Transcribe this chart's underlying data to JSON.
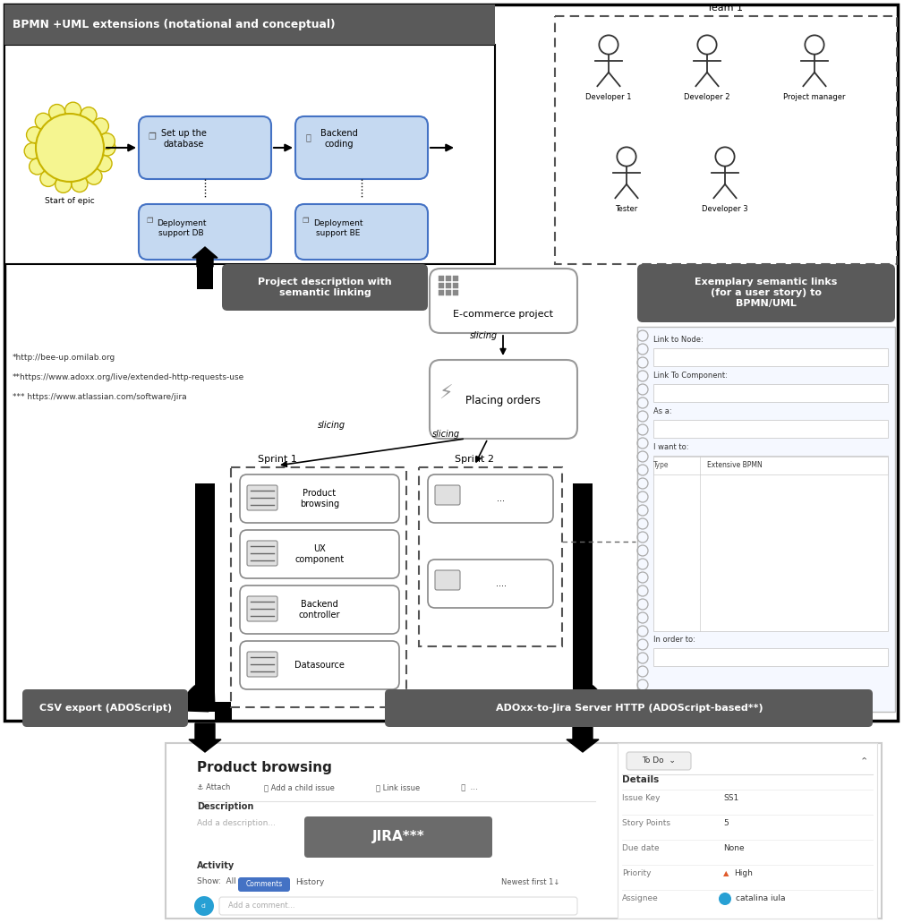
{
  "bg_color": "#ffffff",
  "bpmn_header": "BPMN +UML extensions (notational and conceptual)",
  "gray_dark": "#5a5a5a",
  "blue_fill": "#c5d9f1",
  "blue_border": "#4472c4",
  "project_desc_label": "Project description with\nsemantic linking",
  "semantic_links_header": "Exemplary semantic links\n(for a user story) to\nBPMN/UML",
  "ecommerce_label": "E-commerce project",
  "placing_orders_label": "Placing orders",
  "sprint1_label": "Sprint 1",
  "sprint2_label": "Sprint 2",
  "sprint1_items": [
    "Product\nbrowsing",
    "UX\ncomponent",
    "Backend\ncontroller",
    "Datasource"
  ],
  "sprint2_items": [
    "...",
    "...."
  ],
  "csv_label": "CSV export (ADOScript)",
  "adoxx_label": "ADOxx-to-Jira Server HTTP (ADOScript-based**)",
  "footnotes": [
    "*http://bee-up.omilab.org",
    "**https://www.adoxx.org/live/extended-http-requests-use",
    "*** https://www.atlassian.com/software/jira"
  ],
  "jira_panel_title": "Product browsing",
  "jira_button": "JIRA***",
  "team_label": "Team 1",
  "actors_r1": [
    "Developer 1",
    "Developer 2",
    "Project manager"
  ],
  "actors_r2": [
    "Tester",
    "Developer 3"
  ]
}
